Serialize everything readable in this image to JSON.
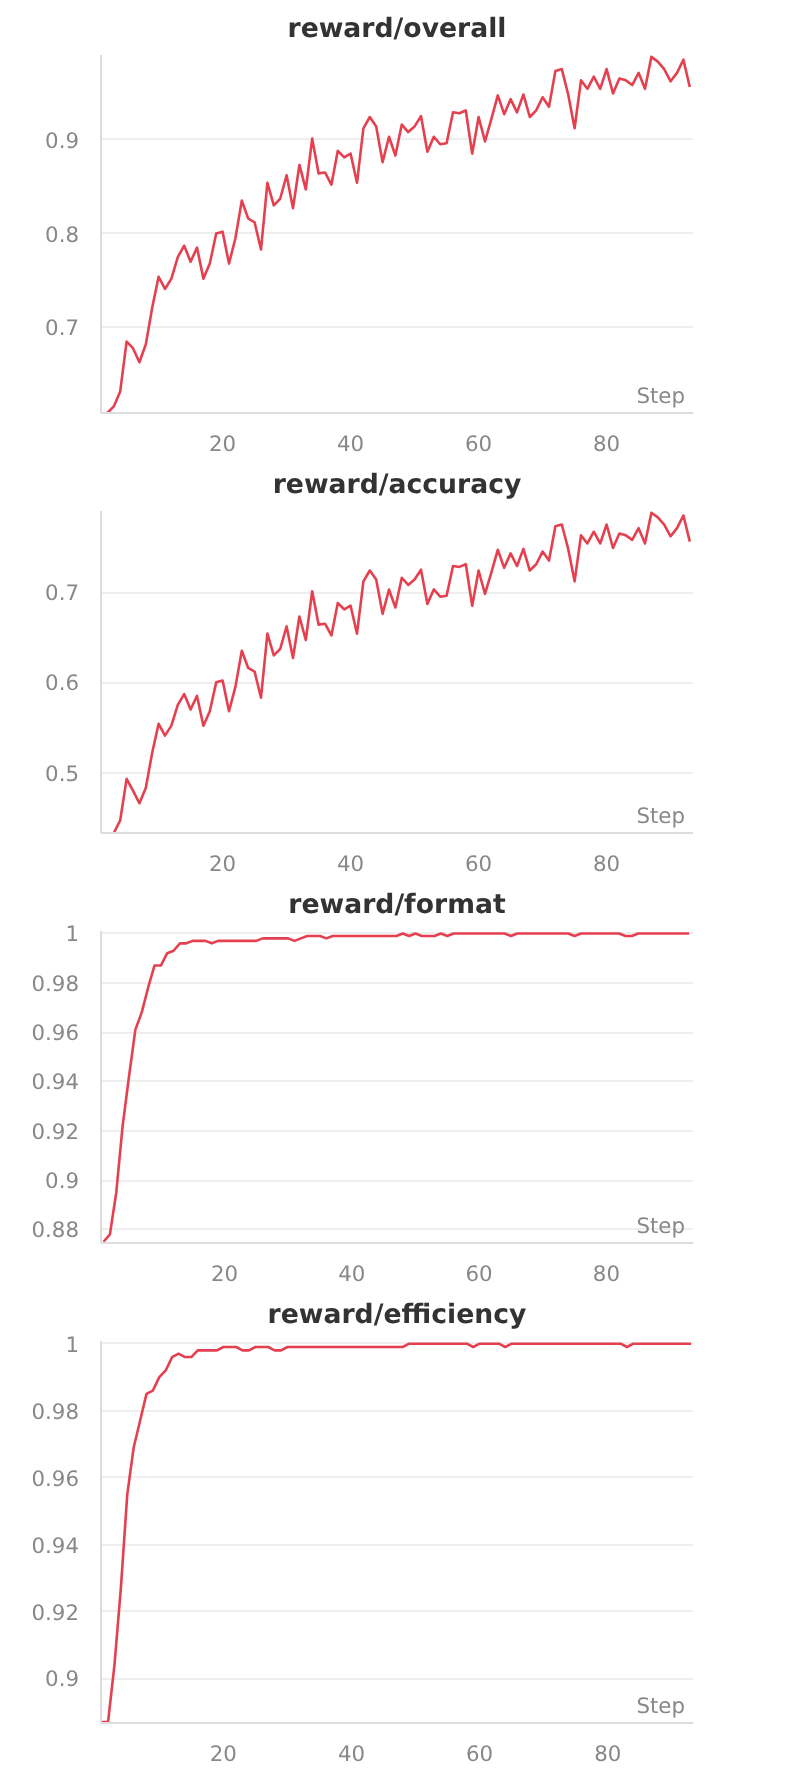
{
  "chart_data": [
    {
      "type": "line",
      "title": "reward/overall",
      "xlabel": "Step",
      "grid": "y",
      "xlim": [
        1,
        93.5
      ],
      "ylim": [
        0.609,
        0.99
      ],
      "xticks": [
        20,
        40,
        60,
        80
      ],
      "yticks": [
        0.7,
        0.8,
        0.9
      ],
      "x": [
        2,
        3,
        4,
        5,
        6,
        7,
        8,
        9,
        10,
        11,
        12,
        13,
        14,
        15,
        16,
        17,
        18,
        19,
        20,
        21,
        22,
        23,
        24,
        25,
        26,
        27,
        28,
        29,
        30,
        31,
        32,
        33,
        34,
        35,
        36,
        37,
        38,
        39,
        40,
        41,
        42,
        43,
        44,
        45,
        46,
        47,
        48,
        49,
        50,
        51,
        52,
        53,
        54,
        55,
        56,
        57,
        58,
        59,
        60,
        61,
        62,
        63,
        64,
        65,
        66,
        67,
        68,
        69,
        70,
        71,
        72,
        73,
        74,
        75,
        76,
        77,
        78,
        79,
        80,
        81,
        82,
        83,
        84,
        85,
        86,
        87,
        88,
        89,
        90,
        91,
        92,
        93
      ],
      "series": [
        {
          "color": "#e5404f",
          "values": [
            0.609,
            0.616,
            0.632,
            0.685,
            0.678,
            0.663,
            0.682,
            0.721,
            0.754,
            0.741,
            0.752,
            0.775,
            0.787,
            0.77,
            0.785,
            0.752,
            0.768,
            0.8,
            0.802,
            0.768,
            0.795,
            0.835,
            0.816,
            0.812,
            0.783,
            0.854,
            0.83,
            0.837,
            0.862,
            0.827,
            0.873,
            0.847,
            0.901,
            0.864,
            0.865,
            0.852,
            0.888,
            0.881,
            0.885,
            0.854,
            0.912,
            0.924,
            0.914,
            0.876,
            0.903,
            0.883,
            0.916,
            0.908,
            0.914,
            0.925,
            0.887,
            0.903,
            0.895,
            0.896,
            0.929,
            0.928,
            0.931,
            0.885,
            0.924,
            0.898,
            0.922,
            0.947,
            0.927,
            0.943,
            0.929,
            0.948,
            0.924,
            0.931,
            0.945,
            0.935,
            0.973,
            0.975,
            0.948,
            0.912,
            0.963,
            0.954,
            0.967,
            0.954,
            0.975,
            0.949,
            0.965,
            0.963,
            0.958,
            0.971,
            0.954,
            0.988,
            0.983,
            0.975,
            0.962,
            0.971,
            0.985,
            0.956
          ]
        }
      ]
    },
    {
      "type": "line",
      "title": "reward/accuracy",
      "xlabel": "Step",
      "grid": "y",
      "xlim": [
        1,
        93.5
      ],
      "ylim": [
        0.433,
        0.79
      ],
      "xticks": [
        20,
        40,
        60,
        80
      ],
      "yticks": [
        0.5,
        0.6,
        0.7
      ],
      "x": [
        3,
        4,
        5,
        6,
        7,
        8,
        9,
        10,
        11,
        12,
        13,
        14,
        15,
        16,
        17,
        18,
        19,
        20,
        21,
        22,
        23,
        24,
        25,
        26,
        27,
        28,
        29,
        30,
        31,
        32,
        33,
        34,
        35,
        36,
        37,
        38,
        39,
        40,
        41,
        42,
        43,
        44,
        45,
        46,
        47,
        48,
        49,
        50,
        51,
        52,
        53,
        54,
        55,
        56,
        57,
        58,
        59,
        60,
        61,
        62,
        63,
        64,
        65,
        66,
        67,
        68,
        69,
        70,
        71,
        72,
        73,
        74,
        75,
        76,
        77,
        78,
        79,
        80,
        81,
        82,
        83,
        84,
        85,
        86,
        87,
        88,
        89,
        90,
        91,
        92,
        93
      ],
      "series": [
        {
          "color": "#e5404f",
          "values": [
            0.433,
            0.447,
            0.493,
            0.48,
            0.466,
            0.483,
            0.522,
            0.554,
            0.541,
            0.552,
            0.575,
            0.587,
            0.57,
            0.585,
            0.552,
            0.568,
            0.6,
            0.602,
            0.568,
            0.595,
            0.635,
            0.616,
            0.612,
            0.583,
            0.654,
            0.63,
            0.637,
            0.662,
            0.627,
            0.673,
            0.647,
            0.701,
            0.664,
            0.665,
            0.652,
            0.688,
            0.681,
            0.685,
            0.654,
            0.712,
            0.724,
            0.714,
            0.676,
            0.703,
            0.683,
            0.716,
            0.708,
            0.714,
            0.725,
            0.687,
            0.703,
            0.695,
            0.696,
            0.729,
            0.728,
            0.731,
            0.685,
            0.724,
            0.698,
            0.722,
            0.747,
            0.727,
            0.743,
            0.729,
            0.748,
            0.724,
            0.731,
            0.745,
            0.735,
            0.773,
            0.775,
            0.748,
            0.712,
            0.763,
            0.754,
            0.767,
            0.754,
            0.775,
            0.749,
            0.765,
            0.763,
            0.758,
            0.771,
            0.754,
            0.788,
            0.783,
            0.775,
            0.762,
            0.771,
            0.785,
            0.756
          ]
        }
      ]
    },
    {
      "type": "line",
      "title": "reward/format",
      "xlabel": "Step",
      "grid": "y",
      "xlim": [
        0.6,
        93.6
      ],
      "ylim": [
        0.8745,
        1.001
      ],
      "xticks": [
        20,
        40,
        60,
        80
      ],
      "yticks": [
        0.88,
        0.9,
        0.92,
        0.94,
        0.96,
        0.98,
        1
      ],
      "x": [
        1,
        2,
        3,
        4,
        5,
        6,
        7,
        8,
        9,
        10,
        11,
        12,
        13,
        14,
        15,
        16,
        17,
        18,
        19,
        20,
        21,
        22,
        23,
        24,
        25,
        26,
        27,
        28,
        29,
        30,
        31,
        32,
        33,
        34,
        35,
        36,
        37,
        38,
        39,
        40,
        41,
        42,
        43,
        44,
        45,
        46,
        47,
        48,
        49,
        50,
        51,
        52,
        53,
        54,
        55,
        56,
        57,
        58,
        59,
        60,
        61,
        62,
        63,
        64,
        65,
        66,
        67,
        68,
        69,
        70,
        71,
        72,
        73,
        74,
        75,
        76,
        77,
        78,
        79,
        80,
        81,
        82,
        83,
        84,
        85,
        86,
        87,
        88,
        89,
        90,
        91,
        92,
        93
      ],
      "series": [
        {
          "color": "#e5404f",
          "values": [
            0.875,
            0.878,
            0.895,
            0.922,
            0.942,
            0.961,
            0.968,
            0.978,
            0.987,
            0.987,
            0.992,
            0.993,
            0.996,
            0.996,
            0.997,
            0.997,
            0.997,
            0.996,
            0.997,
            0.997,
            0.997,
            0.997,
            0.997,
            0.997,
            0.997,
            0.998,
            0.998,
            0.998,
            0.998,
            0.998,
            0.997,
            0.998,
            0.999,
            0.999,
            0.999,
            0.998,
            0.999,
            0.999,
            0.999,
            0.999,
            0.999,
            0.999,
            0.999,
            0.999,
            0.999,
            0.999,
            0.999,
            1.0,
            0.999,
            1.0,
            0.999,
            0.999,
            0.999,
            1.0,
            0.999,
            1.0,
            1.0,
            1.0,
            1.0,
            1.0,
            1.0,
            1.0,
            1.0,
            1.0,
            0.999,
            1.0,
            1.0,
            1.0,
            1.0,
            1.0,
            1.0,
            1.0,
            1.0,
            1.0,
            0.999,
            1.0,
            1.0,
            1.0,
            1.0,
            1.0,
            1.0,
            1.0,
            0.999,
            0.999,
            1.0,
            1.0,
            1.0,
            1.0,
            1.0,
            1.0,
            1.0,
            1.0,
            1.0
          ]
        }
      ]
    },
    {
      "type": "line",
      "title": "reward/efficiency",
      "xlabel": "Step",
      "grid": "y",
      "xlim": [
        0.9,
        93.3
      ],
      "ylim": [
        0.8867,
        1.0008
      ],
      "xticks": [
        20,
        40,
        60,
        80
      ],
      "yticks": [
        0.9,
        0.92,
        0.94,
        0.96,
        0.98,
        1
      ],
      "x": [
        1,
        2,
        3,
        4,
        5,
        6,
        7,
        8,
        9,
        10,
        11,
        12,
        13,
        14,
        15,
        16,
        17,
        18,
        19,
        20,
        21,
        22,
        23,
        24,
        25,
        26,
        27,
        28,
        29,
        30,
        31,
        32,
        33,
        34,
        35,
        36,
        37,
        38,
        39,
        40,
        41,
        42,
        43,
        44,
        45,
        46,
        47,
        48,
        49,
        50,
        51,
        52,
        53,
        54,
        55,
        56,
        57,
        58,
        59,
        60,
        61,
        62,
        63,
        64,
        65,
        66,
        67,
        68,
        69,
        70,
        71,
        72,
        73,
        74,
        75,
        76,
        77,
        78,
        79,
        80,
        81,
        82,
        83,
        84,
        85,
        86,
        87,
        88,
        89,
        90,
        91,
        92,
        93
      ],
      "series": [
        {
          "color": "#e5404f",
          "values": [
            0.887,
            0.887,
            0.904,
            0.927,
            0.955,
            0.969,
            0.977,
            0.985,
            0.986,
            0.99,
            0.992,
            0.996,
            0.997,
            0.996,
            0.996,
            0.998,
            0.998,
            0.998,
            0.998,
            0.999,
            0.999,
            0.999,
            0.998,
            0.998,
            0.999,
            0.999,
            0.999,
            0.998,
            0.998,
            0.999,
            0.999,
            0.999,
            0.999,
            0.999,
            0.999,
            0.999,
            0.999,
            0.999,
            0.999,
            0.999,
            0.999,
            0.999,
            0.999,
            0.999,
            0.999,
            0.999,
            0.999,
            0.999,
            1.0,
            1.0,
            1.0,
            1.0,
            1.0,
            1.0,
            1.0,
            1.0,
            1.0,
            1.0,
            0.999,
            1.0,
            1.0,
            1.0,
            1.0,
            0.999,
            1.0,
            1.0,
            1.0,
            1.0,
            1.0,
            1.0,
            1.0,
            1.0,
            1.0,
            1.0,
            1.0,
            1.0,
            1.0,
            1.0,
            1.0,
            1.0,
            1.0,
            1.0,
            0.999,
            1.0,
            1.0,
            1.0,
            1.0,
            1.0,
            1.0,
            1.0,
            1.0,
            1.0,
            1.0
          ]
        }
      ]
    }
  ]
}
